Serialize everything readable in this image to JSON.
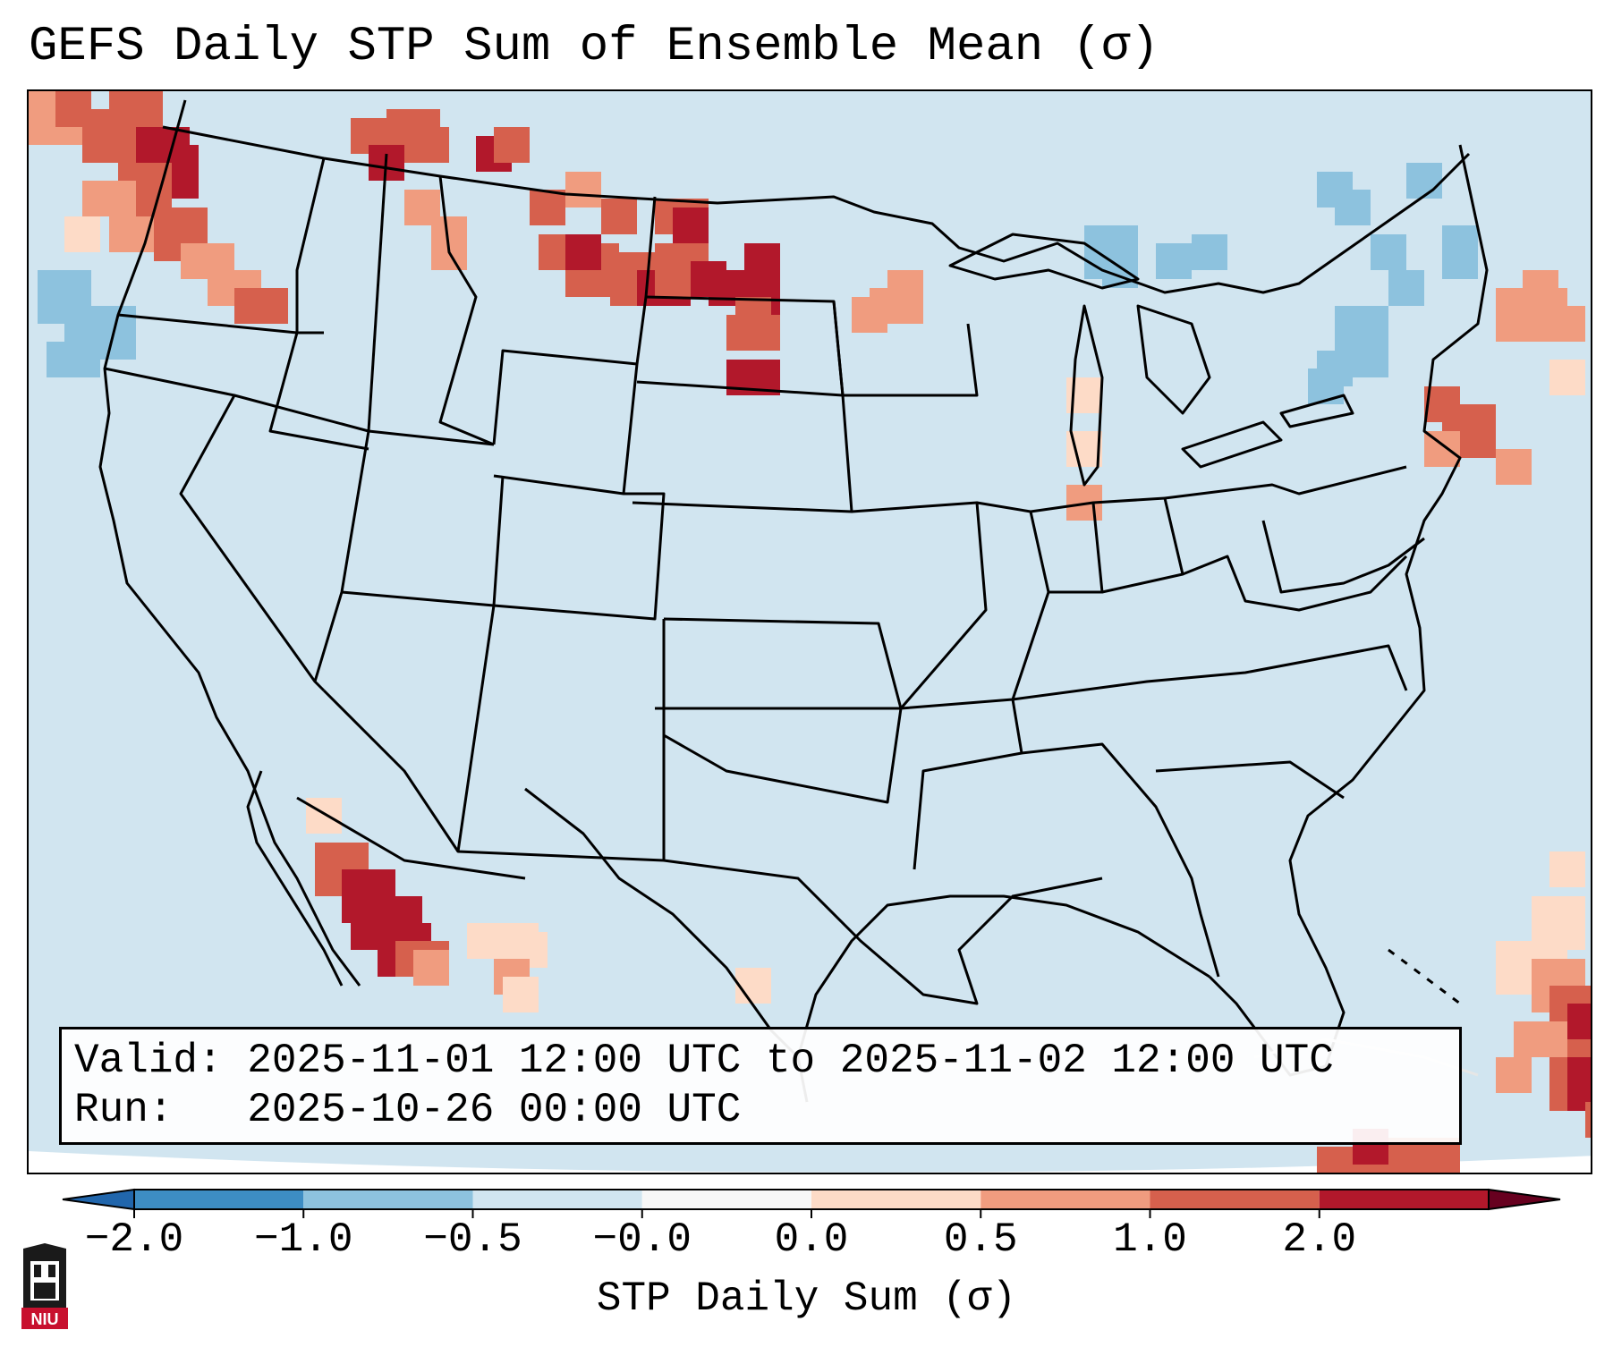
{
  "title": "GEFS Daily STP Sum of Ensemble Mean (σ)",
  "info": {
    "valid_label": "Valid:",
    "valid_value": "2025-11-01 12:00 UTC to 2025-11-02 12:00 UTC",
    "run_label": "Run:",
    "run_value": "2025-10-26 00:00 UTC"
  },
  "colorbar": {
    "label": "STP Daily Sum (σ)",
    "ticks": [
      "−2.0",
      "−1.0",
      "−0.5",
      "−0.0",
      "0.0",
      "0.5",
      "1.0",
      "2.0"
    ],
    "colors": [
      "#3d8dc4",
      "#8dc2de",
      "#d1e5f0",
      "#f7f7f7",
      "#fddbc7",
      "#f09c7f",
      "#d6604d",
      "#b2182b"
    ],
    "extend": "both"
  },
  "map": {
    "background_color": "#d1e5f0",
    "outside_color": "#ffffff",
    "region": "Continental United States"
  },
  "logo": {
    "text": "NIU",
    "color": "#c8102e"
  }
}
